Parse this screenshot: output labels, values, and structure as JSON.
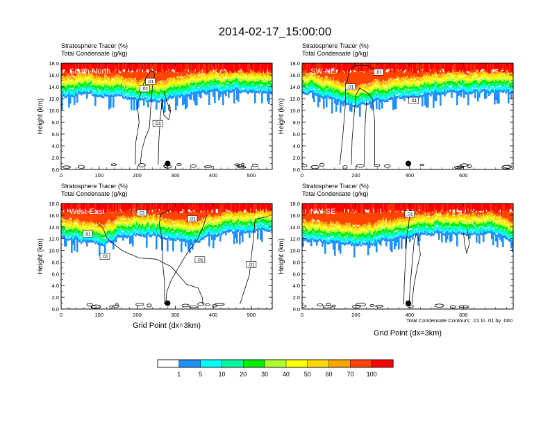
{
  "page_title": "2014-02-17_15:00:00",
  "common": {
    "header_line1": "Stratosphere Tracer   (%)",
    "header_line2": "Total Condensate   (g/kg)",
    "ylabel": "Height (km)",
    "xlabel": "Grid Point (dx=3km)",
    "contour_note": "Total Condensate Contours: .01 to .01 by .000",
    "contour_label": ".01"
  },
  "colorbar": {
    "colors": [
      "#ffffff",
      "#1e90ff",
      "#00ffff",
      "#00fa9a",
      "#00ee00",
      "#adff2f",
      "#ffff00",
      "#ffd700",
      "#ffa500",
      "#ff4500",
      "#ff0000"
    ],
    "labels": [
      "1",
      "5",
      "10",
      "20",
      "30",
      "40",
      "50",
      "60",
      "70",
      "100"
    ]
  },
  "chart_data": [
    {
      "type": "heatmap",
      "panel_label": "South-North",
      "xlim": [
        0,
        555
      ],
      "ylim": [
        0,
        18
      ],
      "xticks": [
        0,
        100,
        200,
        300,
        400,
        500
      ],
      "yticks": [
        0,
        2,
        4,
        6,
        8,
        10,
        12,
        14,
        16,
        18
      ],
      "grid": false,
      "surface_point": [
        280,
        1.0
      ],
      "contour_labels": [
        [
          235,
          14.9
        ],
        [
          220,
          13.7
        ],
        [
          254,
          7.8
        ]
      ],
      "tracer_profile": {
        "x": [
          0,
          50,
          100,
          150,
          200,
          250,
          300,
          350,
          400,
          450,
          500,
          555
        ],
        "base_km": [
          12.4,
          12.5,
          12.6,
          12.2,
          11.6,
          11.2,
          12.0,
          12.7,
          12.9,
          13.0,
          13.0,
          12.9
        ]
      }
    },
    {
      "type": "heatmap",
      "panel_label": "SW-NE",
      "xlim": [
        0,
        785
      ],
      "ylim": [
        0,
        18
      ],
      "xticks": [
        0,
        200,
        400,
        600
      ],
      "yticks": [
        0,
        2,
        4,
        6,
        8,
        10,
        12,
        14,
        16,
        18
      ],
      "grid": false,
      "surface_point": [
        395,
        1.0
      ],
      "contour_labels": [
        [
          285,
          16.5
        ],
        [
          180,
          14.0
        ],
        [
          415,
          11.7
        ]
      ],
      "tracer_profile": {
        "x": [
          0,
          100,
          200,
          300,
          400,
          500,
          600,
          700,
          785
        ],
        "base_km": [
          13.0,
          12.0,
          10.5,
          11.6,
          12.2,
          12.7,
          12.8,
          12.9,
          13.0
        ]
      }
    },
    {
      "type": "heatmap",
      "panel_label": "West-East",
      "xlim": [
        0,
        555
      ],
      "ylim": [
        0,
        18
      ],
      "xticks": [
        0,
        100,
        200,
        300,
        400,
        500
      ],
      "yticks": [
        0,
        2,
        4,
        6,
        8,
        10,
        12,
        14,
        16,
        18
      ],
      "grid": false,
      "surface_point": [
        280,
        1.0
      ],
      "contour_labels": [
        [
          212,
          16.4
        ],
        [
          345,
          15.4
        ],
        [
          70,
          12.8
        ],
        [
          115,
          9.0
        ],
        [
          365,
          8.4
        ],
        [
          500,
          7.6
        ]
      ],
      "tracer_profile": {
        "x": [
          0,
          50,
          100,
          150,
          200,
          250,
          300,
          350,
          400,
          450,
          500,
          555
        ],
        "base_km": [
          12.3,
          11.5,
          10.8,
          12.0,
          12.6,
          12.3,
          11.7,
          11.2,
          12.5,
          12.8,
          13.2,
          13.6
        ]
      }
    },
    {
      "type": "heatmap",
      "panel_label": "NW-SE",
      "xlim": [
        0,
        785
      ],
      "ylim": [
        0,
        18
      ],
      "xticks": [
        0,
        200,
        400,
        600
      ],
      "yticks": [
        0,
        2,
        4,
        6,
        8,
        10,
        12,
        14,
        16,
        18
      ],
      "grid": false,
      "surface_point": [
        395,
        1.0
      ],
      "contour_labels": [
        [
          400,
          16.2
        ]
      ],
      "tracer_profile": {
        "x": [
          0,
          100,
          200,
          300,
          400,
          500,
          600,
          700,
          785
        ],
        "base_km": [
          11.8,
          11.2,
          10.6,
          11.4,
          12.3,
          12.8,
          12.7,
          12.9,
          11.6
        ]
      }
    }
  ]
}
